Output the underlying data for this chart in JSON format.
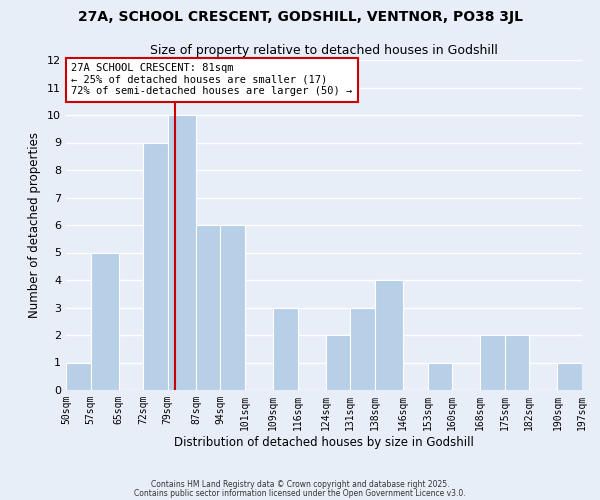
{
  "title": "27A, SCHOOL CRESCENT, GODSHILL, VENTNOR, PO38 3JL",
  "subtitle": "Size of property relative to detached houses in Godshill",
  "xlabel": "Distribution of detached houses by size in Godshill",
  "ylabel": "Number of detached properties",
  "bin_edges": [
    50,
    57,
    65,
    72,
    79,
    87,
    94,
    101,
    109,
    116,
    124,
    131,
    138,
    146,
    153,
    160,
    168,
    175,
    182,
    190,
    197
  ],
  "counts": [
    1,
    5,
    0,
    9,
    10,
    6,
    6,
    0,
    3,
    0,
    2,
    3,
    4,
    0,
    1,
    0,
    2,
    2,
    0,
    1
  ],
  "tick_labels": [
    "50sqm",
    "57sqm",
    "65sqm",
    "72sqm",
    "79sqm",
    "87sqm",
    "94sqm",
    "101sqm",
    "109sqm",
    "116sqm",
    "124sqm",
    "131sqm",
    "138sqm",
    "146sqm",
    "153sqm",
    "160sqm",
    "168sqm",
    "175sqm",
    "182sqm",
    "190sqm",
    "197sqm"
  ],
  "bar_color": "#b8cfe8",
  "bar_edgecolor": "white",
  "property_line_x": 81,
  "property_line_color": "#cc0000",
  "annotation_title": "27A SCHOOL CRESCENT: 81sqm",
  "annotation_line1": "← 25% of detached houses are smaller (17)",
  "annotation_line2": "72% of semi-detached houses are larger (50) →",
  "annotation_box_edgecolor": "#cc0000",
  "annotation_box_facecolor": "#ffffff",
  "ylim": [
    0,
    12
  ],
  "background_color": "#e8eef8",
  "grid_color": "#ffffff",
  "footer1": "Contains HM Land Registry data © Crown copyright and database right 2025.",
  "footer2": "Contains public sector information licensed under the Open Government Licence v3.0."
}
